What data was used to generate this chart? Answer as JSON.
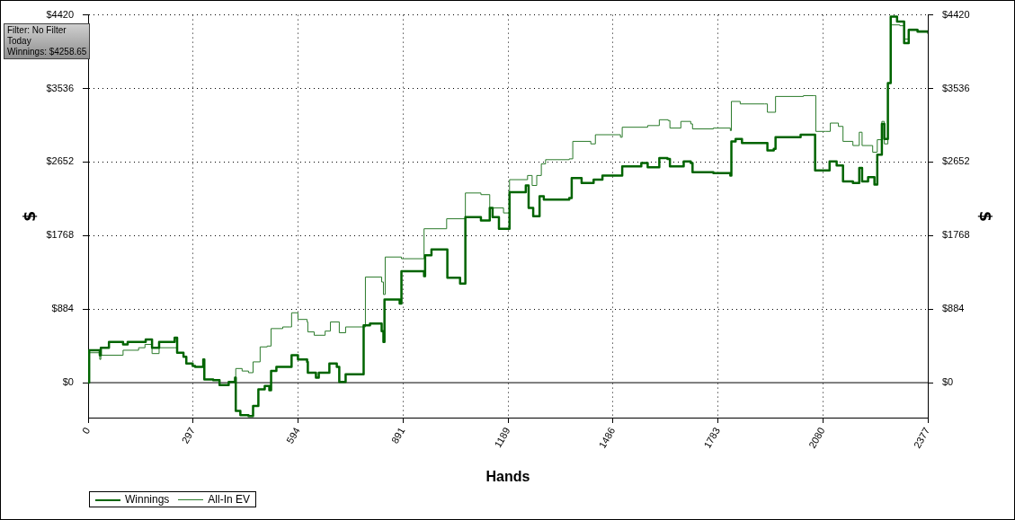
{
  "chart_data": {
    "type": "step",
    "xlabel": "Hands",
    "ylabel": "$",
    "y2label": "$",
    "annotations": [
      "Filter: No Filter",
      "Today",
      "Winnings: $4258.65"
    ],
    "xlim": [
      0,
      2377
    ],
    "xticks": [
      0,
      297,
      594,
      891,
      1189,
      1486,
      1783,
      2080,
      2377
    ],
    "ylim": [
      -420,
      4420
    ],
    "yticks": [
      {
        "value": 0,
        "label": "$0"
      },
      {
        "value": 884,
        "label": "$884"
      },
      {
        "value": 1768,
        "label": "$1768"
      },
      {
        "value": 2652,
        "label": "$2652"
      },
      {
        "value": 3536,
        "label": "$3536"
      },
      {
        "value": 4420,
        "label": "$4420"
      }
    ],
    "y2lim": [
      -420,
      4420
    ],
    "y2ticks": [
      {
        "value": 0,
        "label": "$0"
      },
      {
        "value": 884,
        "label": "$884"
      },
      {
        "value": 1768,
        "label": "$1768"
      },
      {
        "value": 2652,
        "label": "$2652"
      },
      {
        "value": 3536,
        "label": "$3536"
      },
      {
        "value": 4420,
        "label": "$4420"
      }
    ],
    "grid": true,
    "legend": "bottom left",
    "marker": "none",
    "ref_lines": [
      {
        "axis": "y",
        "value": 0,
        "color": "#000000"
      }
    ],
    "series": [
      {
        "name": "Winnings",
        "color": "#006400",
        "x": [
          0,
          3,
          33,
          36,
          59,
          99,
          112,
          163,
          181,
          201,
          245,
          252,
          270,
          278,
          296,
          303,
          326,
          329,
          354,
          372,
          398,
          416,
          418,
          431,
          454,
          467,
          482,
          500,
          513,
          518,
          533,
          569,
          576,
          594,
          620,
          622,
          645,
          653,
          678,
          683,
          704,
          711,
          729,
          780,
          798,
          831,
          836,
          839,
          882,
          887,
          951,
          954,
          972,
          1017,
          1053,
          1068,
          1112,
          1137,
          1145,
          1163,
          1193,
          1239,
          1247,
          1260,
          1278,
          1290,
          1362,
          1369,
          1397,
          1431,
          1456,
          1507,
          1512,
          1566,
          1584,
          1617,
          1640,
          1647,
          1686,
          1706,
          1711,
          1770,
          1818,
          1821,
          1833,
          1851,
          1910,
          1923,
          1941,
          1946,
          2017,
          2055,
          2058,
          2086,
          2099,
          2119,
          2137,
          2165,
          2183,
          2191,
          2208,
          2226,
          2234,
          2247,
          2254,
          2264,
          2272,
          2290,
          2310,
          2323,
          2348,
          2377
        ],
        "values": [
          0,
          390,
          330,
          420,
          490,
          460,
          490,
          520,
          420,
          490,
          540,
          360,
          310,
          230,
          200,
          190,
          280,
          40,
          30,
          -30,
          10,
          60,
          -340,
          -390,
          -400,
          -280,
          -80,
          -40,
          -90,
          140,
          190,
          190,
          330,
          280,
          250,
          120,
          60,
          120,
          120,
          230,
          190,
          10,
          100,
          690,
          710,
          620,
          490,
          1000,
          950,
          1340,
          1280,
          1530,
          1600,
          1260,
          1190,
          1990,
          1950,
          2100,
          1990,
          1850,
          2290,
          2370,
          2100,
          2000,
          2240,
          2200,
          2220,
          2460,
          2400,
          2440,
          2490,
          2490,
          2600,
          2640,
          2590,
          2700,
          2690,
          2600,
          2660,
          2640,
          2530,
          2520,
          2490,
          2900,
          2930,
          2880,
          2880,
          2790,
          2810,
          2950,
          2980,
          2980,
          2550,
          2550,
          2660,
          2610,
          2420,
          2400,
          2580,
          2420,
          2470,
          2380,
          2740,
          3110,
          2930,
          3600,
          4400,
          4340,
          4080,
          4240,
          4220,
          4210
        ]
      },
      {
        "name": "All-In EV",
        "color": "#2a7a2a",
        "x": [
          0,
          3,
          33,
          36,
          99,
          143,
          161,
          181,
          201,
          245,
          252,
          270,
          278,
          296,
          303,
          326,
          329,
          354,
          372,
          398,
          418,
          436,
          454,
          467,
          487,
          507,
          518,
          551,
          571,
          576,
          594,
          620,
          622,
          640,
          671,
          686,
          711,
          729,
          785,
          831,
          836,
          841,
          887,
          951,
          1015,
          1068,
          1112,
          1137,
          1176,
          1193,
          1244,
          1257,
          1270,
          1283,
          1295,
          1362,
          1372,
          1423,
          1436,
          1507,
          1512,
          1584,
          1617,
          1642,
          1647,
          1678,
          1706,
          1711,
          1770,
          1818,
          1821,
          1846,
          1915,
          1923,
          1946,
          2025,
          2055,
          2060,
          2088,
          2101,
          2124,
          2137,
          2165,
          2183,
          2191,
          2221,
          2234,
          2247,
          2254,
          2264,
          2272,
          2298,
          2310,
          2323,
          2348,
          2377
        ],
        "values": [
          0,
          360,
          280,
          330,
          390,
          420,
          460,
          350,
          420,
          420,
          360,
          310,
          230,
          200,
          190,
          280,
          40,
          30,
          -30,
          10,
          170,
          140,
          120,
          250,
          430,
          440,
          650,
          670,
          670,
          840,
          760,
          730,
          610,
          570,
          620,
          730,
          600,
          670,
          1270,
          1210,
          1060,
          1510,
          1490,
          1850,
          1970,
          2280,
          2260,
          2100,
          2040,
          2440,
          2490,
          2370,
          2490,
          2630,
          2680,
          2690,
          2900,
          2870,
          2980,
          2950,
          3070,
          3090,
          3160,
          3150,
          3060,
          3140,
          3110,
          3050,
          3060,
          3030,
          3380,
          3350,
          3350,
          3250,
          3440,
          3450,
          3450,
          3020,
          3020,
          3120,
          3080,
          2900,
          2850,
          3010,
          2850,
          2770,
          2920,
          3140,
          2870,
          3600,
          4300,
          4290,
          4130,
          4250,
          4230,
          4190
        ]
      }
    ]
  }
}
